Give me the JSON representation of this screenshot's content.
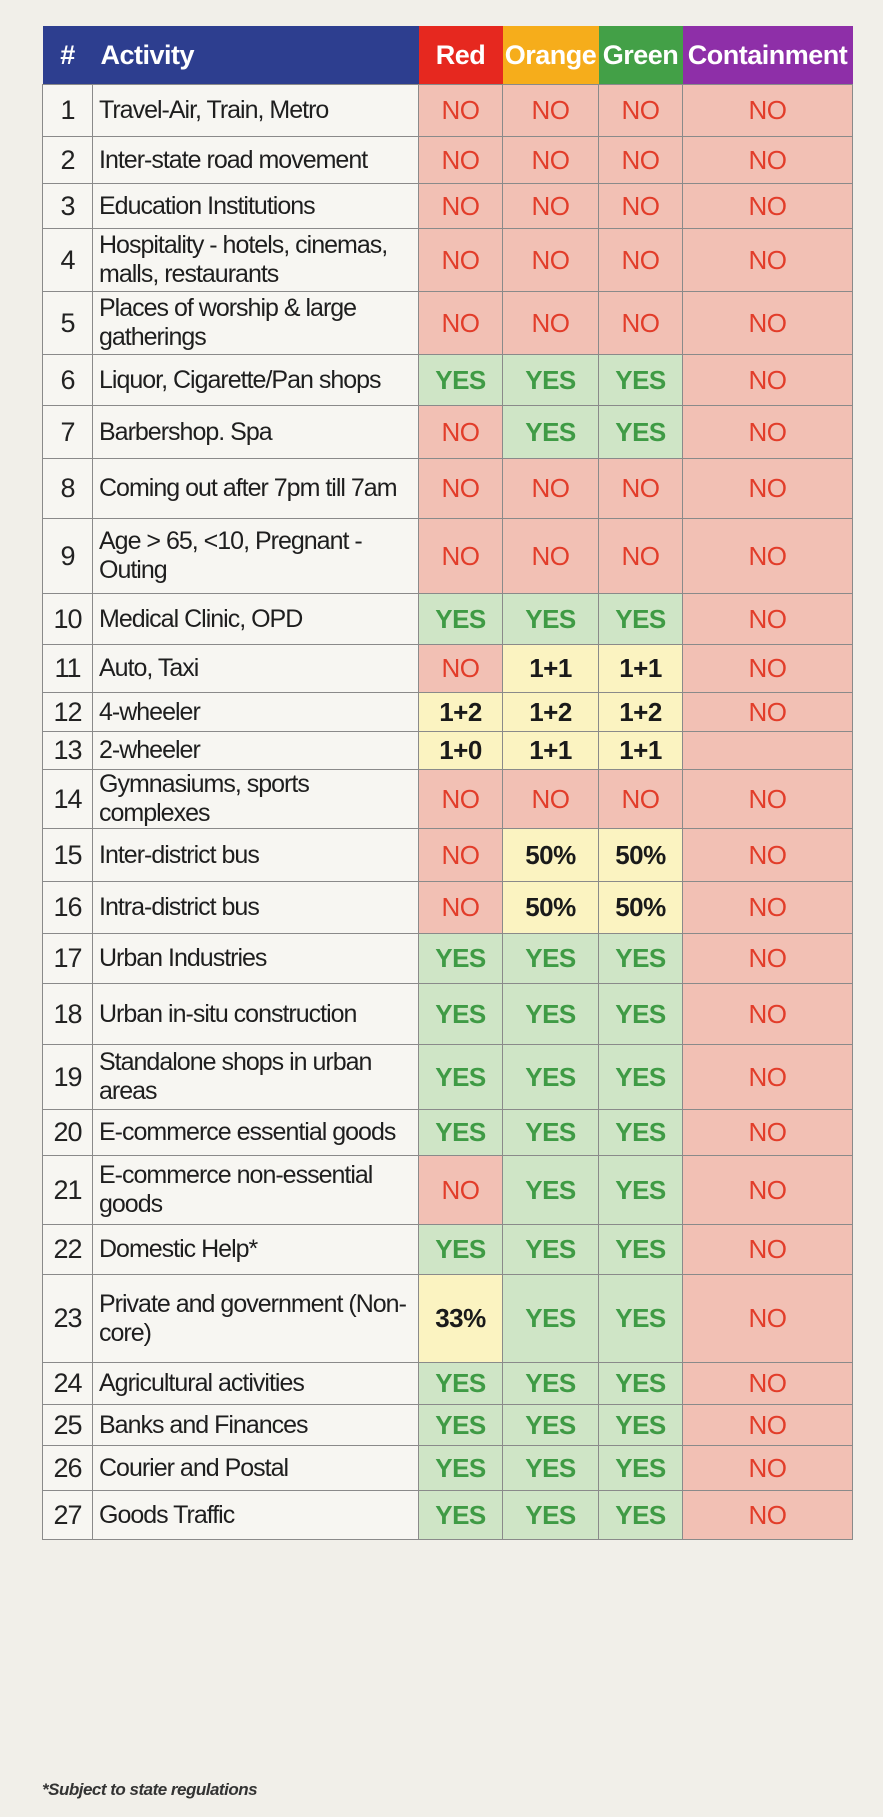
{
  "header": {
    "num": "#",
    "activity": "Activity",
    "red": "Red",
    "orange": "Orange",
    "green": "Green",
    "containment": "Containment"
  },
  "colors": {
    "header_blue": "#2d3e8f",
    "red": "#e6281f",
    "orange": "#f6ad1b",
    "green": "#43a047",
    "containment": "#8e2fa8",
    "no_fill": "#f2c0b4",
    "yes_fill": "#cfe5c6",
    "number_fill": "#fbf3c1"
  },
  "rows": [
    {
      "num": "1",
      "activity": "Travel-Air, Train, Metro",
      "red": "NO",
      "orange": "NO",
      "green": "NO",
      "containment": "NO"
    },
    {
      "num": "2",
      "activity": "Inter-state road movement",
      "red": "NO",
      "orange": "NO",
      "green": "NO",
      "containment": "NO"
    },
    {
      "num": "3",
      "activity": "Education Institutions",
      "red": "NO",
      "orange": "NO",
      "green": "NO",
      "containment": "NO"
    },
    {
      "num": "4",
      "activity": "Hospitality - hotels, cinemas, malls, restaurants",
      "red": "NO",
      "orange": "NO",
      "green": "NO",
      "containment": "NO"
    },
    {
      "num": "5",
      "activity": "Places of worship & large gatherings",
      "red": "NO",
      "orange": "NO",
      "green": "NO",
      "containment": "NO"
    },
    {
      "num": "6",
      "activity": "Liquor, Cigarette/Pan shops",
      "red": "YES",
      "orange": "YES",
      "green": "YES",
      "containment": "NO"
    },
    {
      "num": "7",
      "activity": "Barbershop. Spa",
      "red": "NO",
      "orange": "YES",
      "green": "YES",
      "containment": "NO"
    },
    {
      "num": "8",
      "activity": "Coming out after 7pm till 7am",
      "red": "NO",
      "orange": "NO",
      "green": "NO",
      "containment": "NO"
    },
    {
      "num": "9",
      "activity": "Age > 65, <10, Pregnant - Outing",
      "red": "NO",
      "orange": "NO",
      "green": "NO",
      "containment": "NO"
    },
    {
      "num": "10",
      "activity": "Medical Clinic, OPD",
      "red": "YES",
      "orange": "YES",
      "green": "YES",
      "containment": "NO"
    },
    {
      "num": "11",
      "activity": "Auto, Taxi",
      "red": "NO",
      "orange": "1+1",
      "green": "1+1",
      "containment": "NO"
    },
    {
      "num": "12",
      "activity": "4-wheeler",
      "red": "1+2",
      "orange": "1+2",
      "green": "1+2",
      "containment": "NO"
    },
    {
      "num": "13",
      "activity": "2-wheeler",
      "red": "1+0",
      "orange": "1+1",
      "green": "1+1",
      "containment": ""
    },
    {
      "num": "14",
      "activity": "Gymnasiums, sports complexes",
      "red": "NO",
      "orange": "NO",
      "green": "NO",
      "containment": "NO"
    },
    {
      "num": "15",
      "activity": "Inter-district bus",
      "red": "NO",
      "orange": "50%",
      "green": "50%",
      "containment": "NO"
    },
    {
      "num": "16",
      "activity": "Intra-district bus",
      "red": "NO",
      "orange": "50%",
      "green": "50%",
      "containment": "NO"
    },
    {
      "num": "17",
      "activity": "Urban Industries",
      "red": "YES",
      "orange": "YES",
      "green": "YES",
      "containment": "NO"
    },
    {
      "num": "18",
      "activity": "Urban in-situ construction",
      "red": "YES",
      "orange": "YES",
      "green": "YES",
      "containment": "NO"
    },
    {
      "num": "19",
      "activity": "Standalone shops in urban areas",
      "red": "YES",
      "orange": "YES",
      "green": "YES",
      "containment": "NO"
    },
    {
      "num": "20",
      "activity": "E-commerce essential goods",
      "red": "YES",
      "orange": "YES",
      "green": "YES",
      "containment": "NO"
    },
    {
      "num": "21",
      "activity": "E-commerce non-essential goods",
      "red": "NO",
      "orange": "YES",
      "green": "YES",
      "containment": "NO"
    },
    {
      "num": "22",
      "activity": "Domestic Help*",
      "red": "YES",
      "orange": "YES",
      "green": "YES",
      "containment": "NO"
    },
    {
      "num": "23",
      "activity": "Private and government (Non-core)",
      "red": "33%",
      "orange": "YES",
      "green": "YES",
      "containment": "NO"
    },
    {
      "num": "24",
      "activity": "Agricultural activities",
      "red": "YES",
      "orange": "YES",
      "green": "YES",
      "containment": "NO"
    },
    {
      "num": "25",
      "activity": "Banks and Finances",
      "red": "YES",
      "orange": "YES",
      "green": "YES",
      "containment": "NO"
    },
    {
      "num": "26",
      "activity": "Courier and Postal",
      "red": "YES",
      "orange": "YES",
      "green": "YES",
      "containment": "NO"
    },
    {
      "num": "27",
      "activity": "Goods Traffic",
      "red": "YES",
      "orange": "YES",
      "green": "YES",
      "containment": "NO"
    }
  ],
  "footnote": "*Subject to state regulations"
}
